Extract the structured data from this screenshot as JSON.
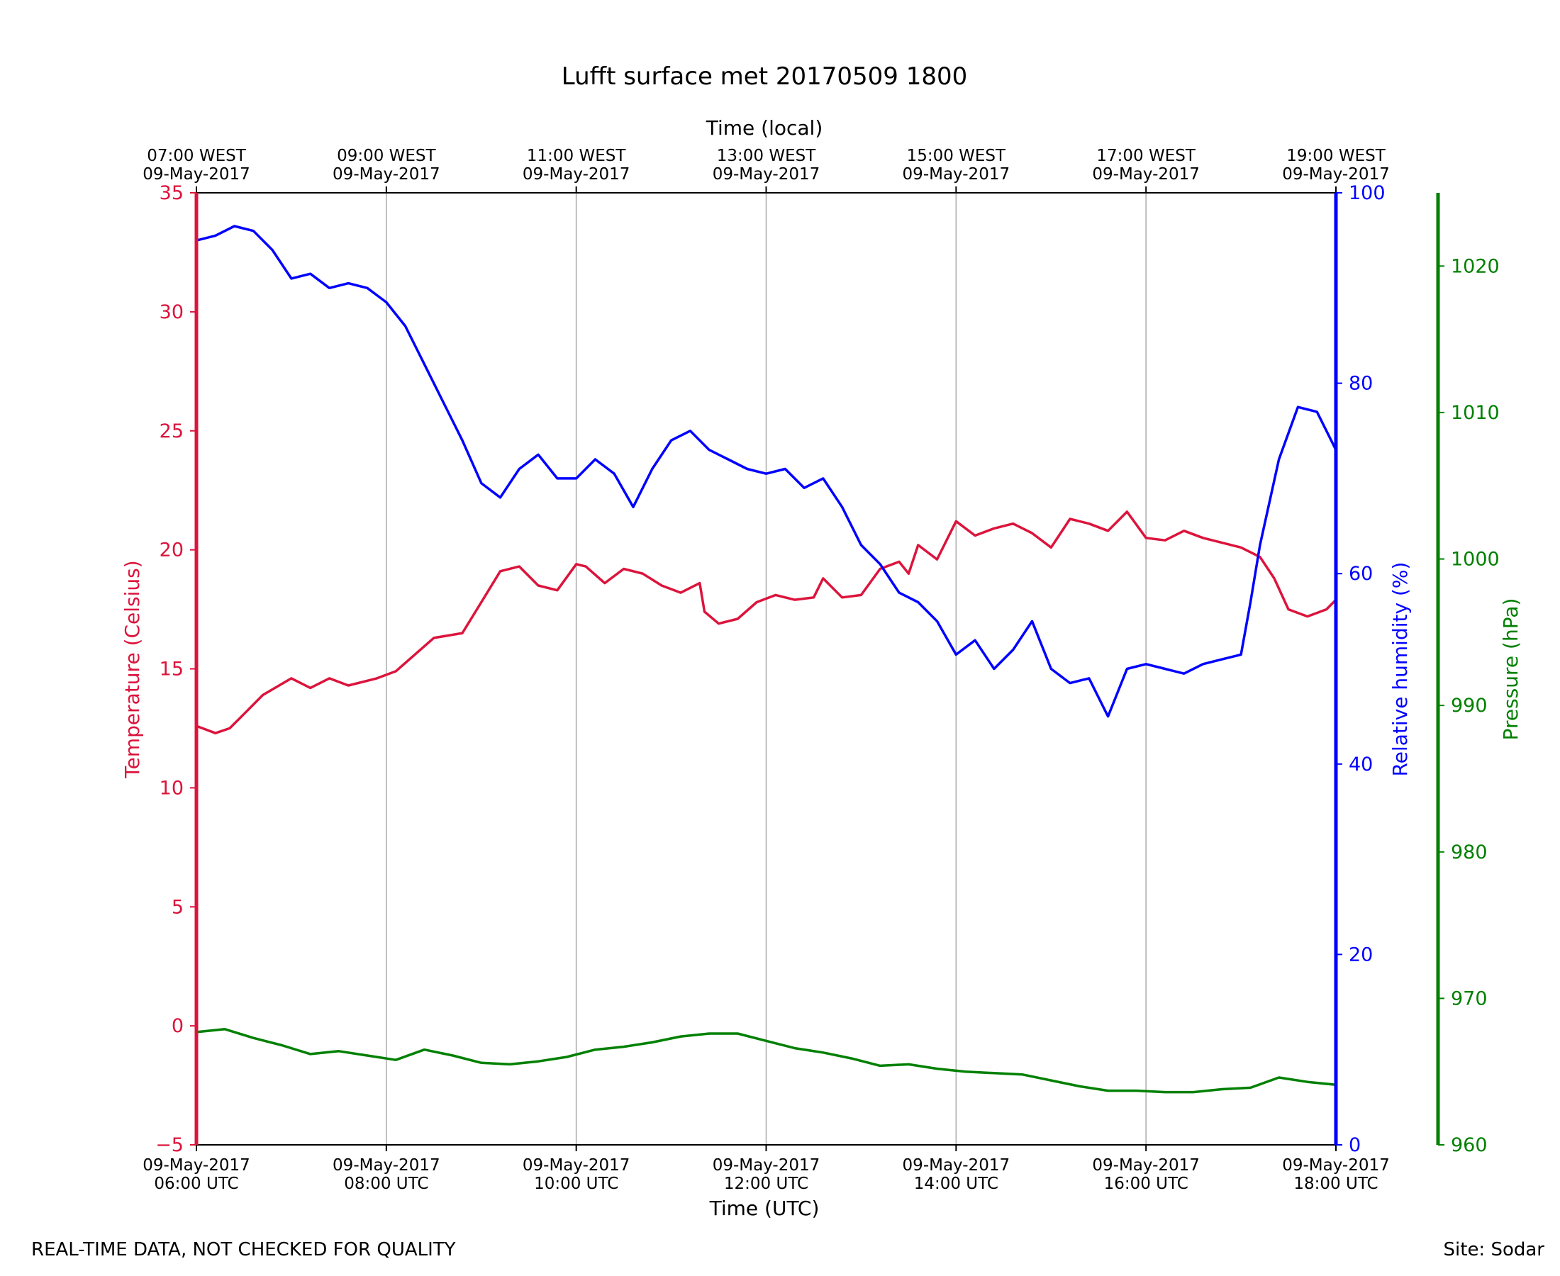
{
  "footer": {
    "disclaimer": "REAL-TIME DATA, NOT CHECKED FOR QUALITY",
    "site": "Site: Sodar"
  },
  "colors": {
    "temperature": "#dc143c",
    "humidity": "#0000ff",
    "pressure": "#008000",
    "grid": "#b0b0b0",
    "axis": "#000000"
  },
  "chart_data": {
    "type": "line",
    "title": "Lufft surface met 20170509 1800",
    "xlabel": "Time (UTC)",
    "x2label": "Time (local)",
    "ylabel_left": "Temperature (Celsius)",
    "ylabel_right": "Relative humidity (%)",
    "ylabel_right2": "Pressure (hPa)",
    "xlim_hours_utc": [
      6,
      18
    ],
    "ylim_temperature": [
      -5,
      35
    ],
    "ylim_humidity": [
      0,
      100
    ],
    "ylim_pressure": [
      960,
      1025
    ],
    "grid": "vertical",
    "bottom_ticks": [
      {
        "hour": 6,
        "date": "09-May-2017",
        "time": "06:00 UTC"
      },
      {
        "hour": 8,
        "date": "09-May-2017",
        "time": "08:00 UTC"
      },
      {
        "hour": 10,
        "date": "09-May-2017",
        "time": "10:00 UTC"
      },
      {
        "hour": 12,
        "date": "09-May-2017",
        "time": "12:00 UTC"
      },
      {
        "hour": 14,
        "date": "09-May-2017",
        "time": "14:00 UTC"
      },
      {
        "hour": 16,
        "date": "09-May-2017",
        "time": "16:00 UTC"
      },
      {
        "hour": 18,
        "date": "09-May-2017",
        "time": "18:00 UTC"
      }
    ],
    "top_ticks": [
      {
        "hour": 6,
        "time": "07:00 WEST",
        "date": "09-May-2017"
      },
      {
        "hour": 8,
        "time": "09:00 WEST",
        "date": "09-May-2017"
      },
      {
        "hour": 10,
        "time": "11:00 WEST",
        "date": "09-May-2017"
      },
      {
        "hour": 12,
        "time": "13:00 WEST",
        "date": "09-May-2017"
      },
      {
        "hour": 14,
        "time": "15:00 WEST",
        "date": "09-May-2017"
      },
      {
        "hour": 16,
        "time": "17:00 WEST",
        "date": "09-May-2017"
      },
      {
        "hour": 18,
        "time": "19:00 WEST",
        "date": "09-May-2017"
      }
    ],
    "temperature_ticks": [
      "−5",
      "0",
      "5",
      "10",
      "15",
      "20",
      "25",
      "30",
      "35"
    ],
    "temperature_tick_values": [
      -5,
      0,
      5,
      10,
      15,
      20,
      25,
      30,
      35
    ],
    "humidity_ticks": [
      "0",
      "20",
      "40",
      "60",
      "80",
      "100"
    ],
    "humidity_tick_values": [
      0,
      20,
      40,
      60,
      80,
      100
    ],
    "pressure_ticks": [
      "960",
      "970",
      "980",
      "990",
      "1000",
      "1010",
      "1020"
    ],
    "pressure_tick_values": [
      960,
      970,
      980,
      990,
      1000,
      1010,
      1020
    ],
    "series": [
      {
        "key": "temperature",
        "axis": "left",
        "x": [
          6.0,
          6.2,
          6.35,
          6.5,
          6.7,
          7.0,
          7.2,
          7.4,
          7.6,
          7.9,
          8.1,
          8.3,
          8.5,
          8.8,
          9.0,
          9.2,
          9.4,
          9.6,
          9.8,
          10.0,
          10.1,
          10.3,
          10.5,
          10.7,
          10.9,
          11.1,
          11.3,
          11.35,
          11.5,
          11.7,
          11.9,
          12.1,
          12.3,
          12.5,
          12.6,
          12.8,
          13.0,
          13.2,
          13.4,
          13.5,
          13.6,
          13.8,
          14.0,
          14.2,
          14.4,
          14.6,
          14.8,
          15.0,
          15.2,
          15.4,
          15.6,
          15.8,
          16.0,
          16.2,
          16.4,
          16.6,
          16.8,
          17.0,
          17.2,
          17.35,
          17.5,
          17.7,
          17.9,
          18.0
        ],
        "y": [
          12.6,
          12.3,
          12.5,
          13.1,
          13.9,
          14.6,
          14.2,
          14.6,
          14.3,
          14.6,
          14.9,
          15.6,
          16.3,
          16.5,
          17.8,
          19.1,
          19.3,
          18.5,
          18.3,
          19.4,
          19.3,
          18.6,
          19.2,
          19.0,
          18.5,
          18.2,
          18.6,
          17.4,
          16.9,
          17.1,
          17.8,
          18.1,
          17.9,
          18.0,
          18.8,
          18.0,
          18.1,
          19.2,
          19.5,
          19.0,
          20.2,
          19.6,
          21.2,
          20.6,
          20.9,
          21.1,
          20.7,
          20.1,
          21.3,
          21.1,
          20.8,
          21.6,
          20.5,
          20.4,
          20.8,
          20.5,
          20.3,
          20.1,
          19.7,
          18.8,
          17.5,
          17.2,
          17.5,
          17.9
        ]
      },
      {
        "key": "humidity",
        "axis": "right",
        "x": [
          6.0,
          6.2,
          6.4,
          6.6,
          6.8,
          7.0,
          7.2,
          7.4,
          7.6,
          7.8,
          8.0,
          8.2,
          8.4,
          8.6,
          8.8,
          9.0,
          9.2,
          9.4,
          9.6,
          9.8,
          10.0,
          10.2,
          10.4,
          10.6,
          10.8,
          11.0,
          11.2,
          11.4,
          11.6,
          11.8,
          12.0,
          12.2,
          12.4,
          12.6,
          12.8,
          13.0,
          13.2,
          13.4,
          13.6,
          13.8,
          14.0,
          14.2,
          14.4,
          14.6,
          14.8,
          15.0,
          15.2,
          15.4,
          15.6,
          15.8,
          16.0,
          16.2,
          16.4,
          16.6,
          16.8,
          17.0,
          17.1,
          17.2,
          17.4,
          17.6,
          17.8,
          18.0
        ],
        "y": [
          95,
          95.5,
          96.5,
          96,
          94,
          91,
          91.5,
          90,
          90.5,
          90,
          88.5,
          86,
          82,
          78,
          74,
          69.5,
          68,
          71,
          72.5,
          70,
          70,
          72,
          70.5,
          67,
          71,
          74,
          75,
          73,
          72,
          71,
          70.5,
          71,
          69,
          70,
          67,
          63,
          61,
          58,
          57,
          55,
          51.5,
          53,
          50,
          52,
          55,
          50,
          48.5,
          49,
          45,
          50,
          50.5,
          50,
          49.5,
          50.5,
          51,
          51.5,
          57,
          63,
          72,
          77.5,
          77,
          73
        ]
      },
      {
        "key": "pressure",
        "axis": "right2",
        "x": [
          6.0,
          6.3,
          6.6,
          6.9,
          7.2,
          7.5,
          7.8,
          8.1,
          8.4,
          8.7,
          9.0,
          9.3,
          9.6,
          9.9,
          10.2,
          10.5,
          10.8,
          11.1,
          11.4,
          11.7,
          12.0,
          12.3,
          12.6,
          12.9,
          13.2,
          13.5,
          13.8,
          14.1,
          14.4,
          14.7,
          15.0,
          15.3,
          15.6,
          15.9,
          16.2,
          16.5,
          16.8,
          17.1,
          17.4,
          17.7,
          18.0
        ],
        "y": [
          967.7,
          967.9,
          967.3,
          966.8,
          966.2,
          966.4,
          966.1,
          965.8,
          966.5,
          966.1,
          965.6,
          965.5,
          965.7,
          966.0,
          966.5,
          966.7,
          967.0,
          967.4,
          967.6,
          967.6,
          967.1,
          966.6,
          966.3,
          965.9,
          965.4,
          965.5,
          965.2,
          965.0,
          964.9,
          964.8,
          964.4,
          964.0,
          963.7,
          963.7,
          963.6,
          963.6,
          963.8,
          963.9,
          964.6,
          964.3,
          964.1
        ]
      }
    ]
  }
}
